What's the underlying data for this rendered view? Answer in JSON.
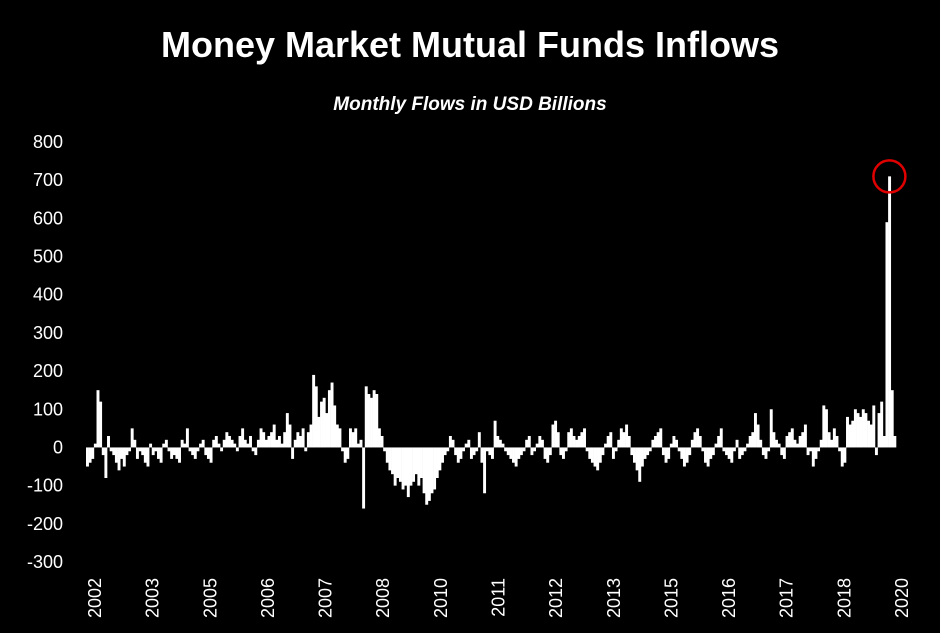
{
  "chart_data": {
    "type": "bar",
    "title": "Money Market Mutual Funds Inflows",
    "subtitle": "Monthly Flows in USD Billions",
    "xlabel": "",
    "ylabel": "",
    "ylim": [
      -300,
      800
    ],
    "yticks": [
      800,
      700,
      600,
      500,
      400,
      300,
      200,
      100,
      0,
      -100,
      -200,
      -300
    ],
    "xticks": [
      "2002",
      "2003",
      "2005",
      "2006",
      "2007",
      "2008",
      "2010",
      "2011",
      "2012",
      "2013",
      "2015",
      "2016",
      "2017",
      "2018",
      "2020"
    ],
    "grid": false,
    "bar_color": "#ffffff",
    "highlight": {
      "shape": "circle",
      "color": "#e00000",
      "around_value": 710
    },
    "values": [
      -50,
      -40,
      -30,
      10,
      150,
      120,
      -20,
      -80,
      30,
      -10,
      -20,
      -40,
      -60,
      -30,
      -50,
      -20,
      -10,
      50,
      20,
      -30,
      -10,
      -20,
      -40,
      -50,
      10,
      -20,
      -10,
      -30,
      -40,
      10,
      20,
      -10,
      -30,
      -20,
      -30,
      -40,
      20,
      10,
      50,
      -10,
      -20,
      -30,
      -10,
      10,
      20,
      -20,
      -30,
      -40,
      20,
      30,
      10,
      -10,
      20,
      40,
      30,
      20,
      10,
      -10,
      30,
      50,
      20,
      10,
      30,
      -10,
      -20,
      20,
      50,
      40,
      20,
      30,
      40,
      60,
      20,
      30,
      10,
      40,
      90,
      60,
      -30,
      20,
      40,
      30,
      50,
      -10,
      40,
      60,
      190,
      160,
      80,
      120,
      130,
      90,
      150,
      170,
      110,
      60,
      50,
      -10,
      -40,
      -30,
      50,
      40,
      50,
      10,
      20,
      -160,
      160,
      140,
      130,
      150,
      140,
      50,
      30,
      -10,
      -40,
      -60,
      -70,
      -100,
      -80,
      -90,
      -110,
      -100,
      -130,
      -100,
      -90,
      -70,
      -100,
      -80,
      -120,
      -150,
      -140,
      -120,
      -110,
      -80,
      -60,
      -40,
      -20,
      -10,
      30,
      20,
      -20,
      -40,
      -30,
      -10,
      10,
      20,
      -30,
      -20,
      -10,
      40,
      -40,
      -120,
      -10,
      -20,
      -30,
      70,
      30,
      20,
      10,
      -10,
      -20,
      -30,
      -40,
      -50,
      -30,
      -20,
      -10,
      20,
      30,
      -20,
      -10,
      10,
      30,
      20,
      -30,
      -40,
      -20,
      60,
      70,
      40,
      -20,
      -30,
      -10,
      40,
      50,
      30,
      20,
      30,
      40,
      50,
      -10,
      -30,
      -40,
      -50,
      -60,
      -40,
      -20,
      10,
      30,
      40,
      -30,
      -10,
      20,
      50,
      40,
      60,
      30,
      -20,
      -40,
      -60,
      -90,
      -50,
      -30,
      -20,
      -10,
      20,
      30,
      40,
      50,
      -20,
      -40,
      -30,
      10,
      30,
      20,
      -10,
      -30,
      -50,
      -40,
      -20,
      20,
      40,
      50,
      30,
      -10,
      -40,
      -50,
      -30,
      -20,
      10,
      30,
      50,
      -10,
      -20,
      -30,
      -40,
      -10,
      20,
      -30,
      -20,
      -10,
      10,
      30,
      40,
      90,
      60,
      20,
      -20,
      -30,
      -10,
      100,
      40,
      20,
      10,
      -20,
      -30,
      30,
      40,
      50,
      20,
      10,
      30,
      40,
      60,
      -20,
      -10,
      -50,
      -30,
      -10,
      20,
      110,
      100,
      40,
      20,
      50,
      30,
      -10,
      -50,
      -40,
      80,
      60,
      70,
      100,
      90,
      80,
      100,
      90,
      70,
      60,
      110,
      -20,
      90,
      120,
      30,
      590,
      710,
      150,
      30
    ]
  }
}
